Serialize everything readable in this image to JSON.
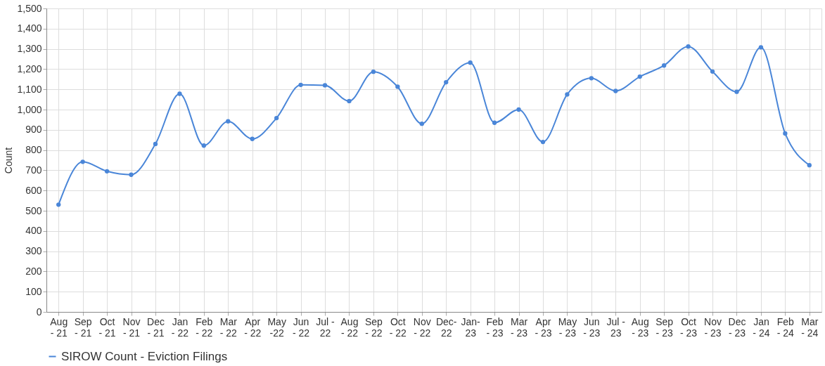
{
  "chart_data": {
    "type": "line",
    "ylabel": "Count",
    "categories": [
      "Aug\n- 21",
      "Sep\n- 21",
      "Oct\n- 21",
      "Nov\n- 21",
      "Dec\n- 21",
      "Jan\n- 22",
      "Feb\n- 22",
      "Mar\n- 22",
      "Apr\n- 22",
      "May\n-22",
      "Jun\n- 22",
      "Jul -\n22",
      "Aug\n- 22",
      "Sep\n- 22",
      "Oct\n- 22",
      "Nov\n- 22",
      "Dec-\n22",
      "Jan-\n23",
      "Feb\n- 23",
      "Mar\n- 23",
      "Apr\n- 23",
      "May\n- 23",
      "Jun\n- 23",
      "Jul -\n23",
      "Aug\n- 23",
      "Sep\n- 23",
      "Oct\n- 23",
      "Nov\n- 23",
      "Dec\n- 23",
      "Jan\n- 24",
      "Feb\n- 24",
      "Mar\n- 24"
    ],
    "series": [
      {
        "name": "SIROW Count - Eviction Filings",
        "color": "#4a86d8",
        "values": [
          530,
          742,
          695,
          678,
          830,
          1078,
          822,
          942,
          855,
          958,
          1122,
          1120,
          1042,
          1187,
          1113,
          930,
          1135,
          1232,
          935,
          1000,
          840,
          1075,
          1155,
          1092,
          1163,
          1218,
          1312,
          1188,
          1088,
          1308,
          882,
          725
        ]
      }
    ],
    "ylim": [
      0,
      1500
    ],
    "yticks": [
      {
        "value": 0,
        "label": "0"
      },
      {
        "value": 100,
        "label": "100"
      },
      {
        "value": 200,
        "label": "200"
      },
      {
        "value": 300,
        "label": "300"
      },
      {
        "value": 400,
        "label": "400"
      },
      {
        "value": 500,
        "label": "500"
      },
      {
        "value": 600,
        "label": "600"
      },
      {
        "value": 700,
        "label": "700"
      },
      {
        "value": 800,
        "label": "800"
      },
      {
        "value": 900,
        "label": "900"
      },
      {
        "value": 1000,
        "label": "1,000"
      },
      {
        "value": 1100,
        "label": "1,100"
      },
      {
        "value": 1200,
        "label": "1,200"
      },
      {
        "value": 1300,
        "label": "1,300"
      },
      {
        "value": 1400,
        "label": "1,400"
      },
      {
        "value": 1500,
        "label": "1,500"
      }
    ],
    "grid": true,
    "legend": "bottom",
    "marker": "circle",
    "line_style": "solid"
  }
}
